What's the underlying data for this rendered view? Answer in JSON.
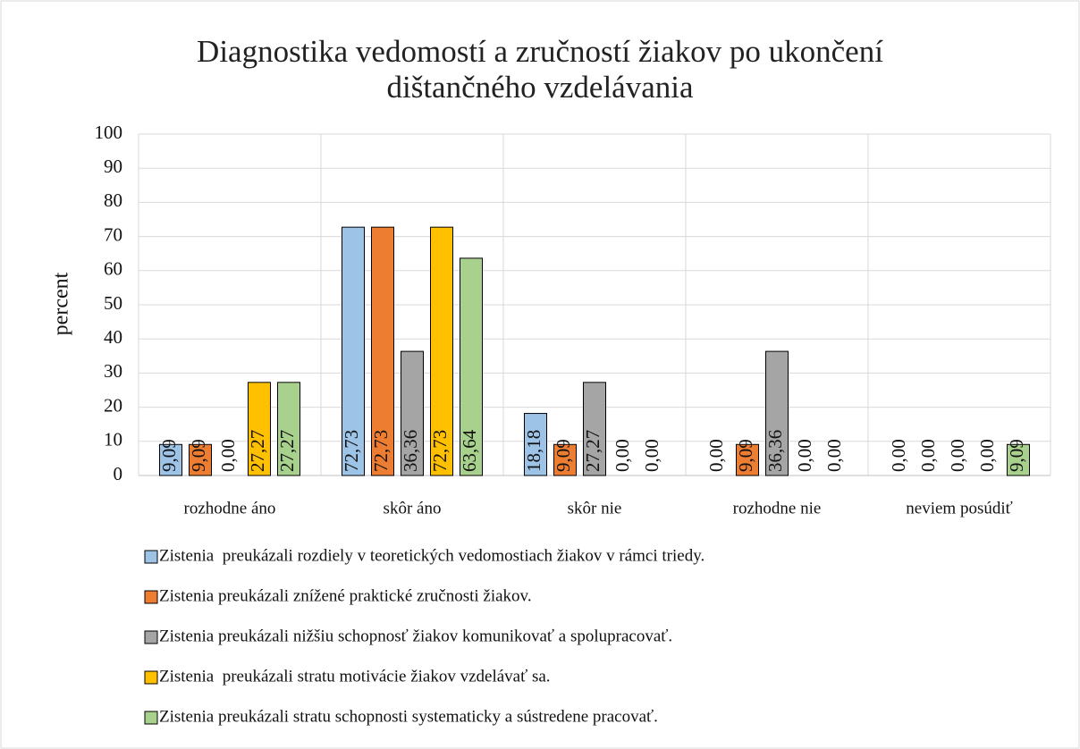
{
  "chart_data": {
    "type": "bar",
    "title": "Diagnostika vedomostí a zručností žiakov po ukončení dištančného vzdelávania",
    "ylabel": "percent",
    "categories": [
      "rozhodne áno",
      "skôr áno",
      "skôr nie",
      "rozhodne nie",
      "neviem posúdiť"
    ],
    "series": [
      {
        "name": "Zistenia  preukázali rozdiely v teoretických vedomostiach žiakov v rámci triedy.",
        "color": "#9dc3e6",
        "values": [
          9.09,
          72.73,
          18.18,
          0,
          0
        ],
        "value_labels": [
          "9,09",
          "72,73",
          "18,18",
          "0,00",
          "0,00"
        ]
      },
      {
        "name": "Zistenia preukázali znížené praktické zručnosti žiakov.",
        "color": "#ed7d31",
        "values": [
          9.09,
          72.73,
          9.09,
          9.09,
          0
        ],
        "value_labels": [
          "9,09",
          "72,73",
          "9,09",
          "9,09",
          "0,00"
        ]
      },
      {
        "name": "Zistenia preukázali nižšiu schopnosť žiakov komunikovať a spolupracovať.",
        "color": "#a5a5a5",
        "values": [
          0,
          36.36,
          27.27,
          36.36,
          0
        ],
        "value_labels": [
          "0,00",
          "36,36",
          "27,27",
          "36,36",
          "0,00"
        ]
      },
      {
        "name": "Zistenia  preukázali stratu motivácie žiakov vzdelávať sa.",
        "color": "#ffc000",
        "values": [
          27.27,
          72.73,
          0,
          0,
          0
        ],
        "value_labels": [
          "27,27",
          "72,73",
          "0,00",
          "0,00",
          "0,00"
        ]
      },
      {
        "name": "Zistenia preukázali stratu schopnosti systematicky a sústredene pracovať.",
        "color": "#a9d18e",
        "values": [
          27.27,
          63.64,
          0,
          0,
          9.09
        ],
        "value_labels": [
          "27,27",
          "63,64",
          "0,00",
          "0,00",
          "9,09"
        ]
      }
    ],
    "ylim": [
      0,
      100
    ],
    "yticks": [
      0,
      10,
      20,
      30,
      40,
      50,
      60,
      70,
      80,
      90,
      100
    ],
    "grid": true
  }
}
